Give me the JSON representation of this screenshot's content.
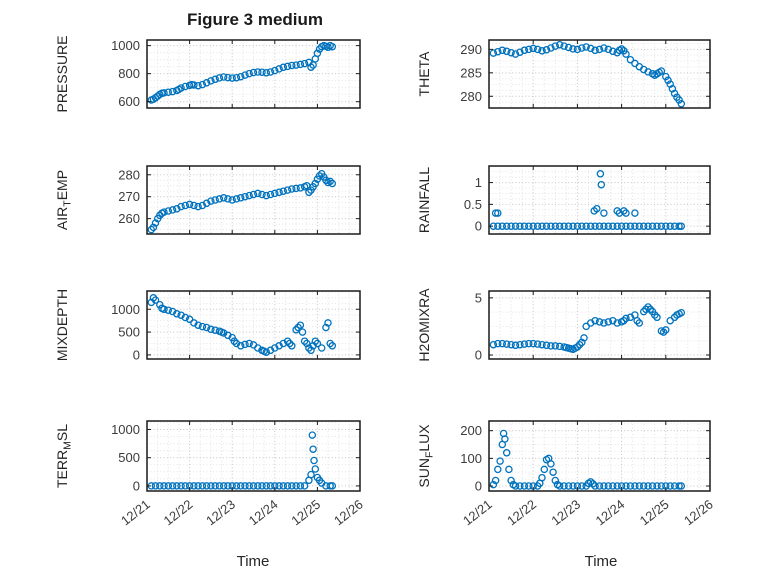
{
  "figure": {
    "title": "Figure 3 medium",
    "xlabel": "Time",
    "marker_color": "#0072BD",
    "xtick_labels": [
      "12/21",
      "12/22",
      "12/23",
      "12/24",
      "12/25",
      "12/26"
    ]
  },
  "chart_data": [
    {
      "type": "scatter",
      "name": "PRESSURE",
      "ylabel_parts": [
        {
          "t": "PRESSURE"
        }
      ],
      "yticks": [
        600,
        800,
        1000
      ],
      "ytick_labels": [
        "600",
        "800",
        "1000"
      ],
      "ylim": [
        555,
        1040
      ],
      "x": [
        0.1,
        0.15,
        0.2,
        0.25,
        0.3,
        0.35,
        0.4,
        0.5,
        0.6,
        0.7,
        0.75,
        0.8,
        0.9,
        1.0,
        1.05,
        1.1,
        1.2,
        1.3,
        1.4,
        1.5,
        1.6,
        1.7,
        1.8,
        1.9,
        2.0,
        2.1,
        2.2,
        2.3,
        2.4,
        2.5,
        2.6,
        2.7,
        2.8,
        2.9,
        3.0,
        3.1,
        3.2,
        3.3,
        3.4,
        3.5,
        3.6,
        3.7,
        3.8,
        3.85,
        3.9,
        3.95,
        4.0,
        4.05,
        4.1,
        4.15,
        4.2,
        4.25,
        4.3,
        4.35
      ],
      "y": [
        612,
        618,
        628,
        640,
        652,
        660,
        663,
        668,
        672,
        680,
        688,
        698,
        708,
        716,
        722,
        719,
        714,
        722,
        735,
        748,
        760,
        770,
        776,
        772,
        768,
        771,
        778,
        790,
        800,
        808,
        812,
        810,
        806,
        812,
        822,
        834,
        845,
        852,
        858,
        861,
        866,
        872,
        880,
        846,
        862,
        905,
        945,
        975,
        992,
        1000,
        996,
        988,
        1000,
        992
      ]
    },
    {
      "type": "scatter",
      "name": "THETA",
      "ylabel_parts": [
        {
          "t": "THETA"
        }
      ],
      "yticks": [
        280,
        285,
        290
      ],
      "ytick_labels": [
        "280",
        "285",
        "290"
      ],
      "ylim": [
        277.5,
        292
      ],
      "x": [
        0.1,
        0.2,
        0.3,
        0.4,
        0.5,
        0.6,
        0.7,
        0.8,
        0.9,
        1.0,
        1.1,
        1.2,
        1.3,
        1.4,
        1.5,
        1.6,
        1.7,
        1.8,
        1.9,
        2.0,
        2.1,
        2.2,
        2.3,
        2.4,
        2.5,
        2.6,
        2.7,
        2.8,
        2.9,
        2.95,
        3.0,
        3.05,
        3.1,
        3.2,
        3.3,
        3.4,
        3.5,
        3.6,
        3.7,
        3.75,
        3.8,
        3.85,
        3.9,
        4.0,
        4.05,
        4.1,
        4.15,
        4.2,
        4.25,
        4.3,
        4.35
      ],
      "y": [
        289.2,
        289.5,
        289.8,
        289.6,
        289.3,
        289.0,
        289.4,
        289.8,
        290.0,
        290.2,
        290.0,
        289.7,
        289.9,
        290.3,
        290.7,
        291.0,
        290.7,
        290.4,
        290.1,
        290.0,
        290.3,
        290.5,
        290.2,
        289.8,
        290.0,
        290.3,
        290.0,
        289.6,
        289.3,
        289.8,
        290.1,
        289.7,
        289.0,
        287.8,
        287.0,
        286.3,
        285.7,
        285.2,
        284.8,
        284.5,
        284.8,
        285.1,
        285.4,
        284.2,
        283.4,
        282.6,
        281.6,
        280.6,
        279.8,
        279.2,
        278.4
      ]
    },
    {
      "type": "scatter",
      "name": "AIR_TEMP",
      "ylabel_parts": [
        {
          "t": "AIR"
        },
        {
          "t": "T",
          "sub": true
        },
        {
          "t": "EMP"
        }
      ],
      "yticks": [
        260,
        270,
        280
      ],
      "ytick_labels": [
        "260",
        "270",
        "280"
      ],
      "ylim": [
        253,
        284
      ],
      "x": [
        0.1,
        0.15,
        0.2,
        0.25,
        0.3,
        0.35,
        0.4,
        0.5,
        0.6,
        0.7,
        0.8,
        0.9,
        1.0,
        1.1,
        1.2,
        1.3,
        1.4,
        1.5,
        1.6,
        1.7,
        1.8,
        1.9,
        2.0,
        2.1,
        2.2,
        2.3,
        2.4,
        2.5,
        2.6,
        2.7,
        2.8,
        2.9,
        3.0,
        3.1,
        3.2,
        3.3,
        3.4,
        3.5,
        3.6,
        3.7,
        3.75,
        3.8,
        3.85,
        3.9,
        3.95,
        4.0,
        4.05,
        4.1,
        4.15,
        4.2,
        4.25,
        4.3,
        4.35
      ],
      "y": [
        255.0,
        256.0,
        258.0,
        260.0,
        261.5,
        262.5,
        263.0,
        263.5,
        264.0,
        264.5,
        265.5,
        266.0,
        266.5,
        266.0,
        265.5,
        266.0,
        267.0,
        268.0,
        268.5,
        269.0,
        269.5,
        269.0,
        268.5,
        269.0,
        269.5,
        270.0,
        270.5,
        271.0,
        271.5,
        271.0,
        270.5,
        271.0,
        271.5,
        272.0,
        272.5,
        273.0,
        273.5,
        273.8,
        274.0,
        274.5,
        275.0,
        272.0,
        273.0,
        274.5,
        276.0,
        278.0,
        279.5,
        280.5,
        279.0,
        277.5,
        276.5,
        277.0,
        276.0
      ]
    },
    {
      "type": "scatter",
      "name": "RAINFALL",
      "ylabel_parts": [
        {
          "t": "RAINFALL"
        }
      ],
      "yticks": [
        0,
        0.5,
        1
      ],
      "ytick_labels": [
        "0",
        "0.5",
        "1"
      ],
      "ylim": [
        -0.18,
        1.38
      ],
      "x": [
        0.1,
        0.2,
        0.3,
        0.4,
        0.5,
        0.6,
        0.7,
        0.8,
        0.9,
        1.0,
        1.1,
        1.2,
        1.3,
        1.4,
        1.5,
        1.6,
        1.7,
        1.8,
        1.9,
        2.0,
        2.1,
        2.2,
        2.3,
        2.4,
        2.5,
        2.6,
        2.7,
        2.8,
        2.9,
        3.0,
        3.1,
        3.2,
        3.3,
        3.4,
        3.5,
        3.6,
        3.7,
        3.8,
        3.9,
        4.0,
        4.1,
        4.2,
        4.3,
        4.35,
        0.15,
        0.2,
        2.38,
        2.44,
        2.52,
        2.54,
        2.6,
        2.9,
        2.95,
        3.05,
        3.1,
        3.3
      ],
      "y": [
        0,
        0,
        0,
        0,
        0,
        0,
        0,
        0,
        0,
        0,
        0,
        0,
        0,
        0,
        0,
        0,
        0,
        0,
        0,
        0,
        0,
        0,
        0,
        0,
        0,
        0,
        0,
        0,
        0,
        0,
        0,
        0,
        0,
        0,
        0,
        0,
        0,
        0,
        0,
        0,
        0,
        0,
        0,
        0,
        0.3,
        0.3,
        0.35,
        0.4,
        1.2,
        0.95,
        0.3,
        0.35,
        0.3,
        0.35,
        0.3,
        0.3
      ]
    },
    {
      "type": "scatter",
      "name": "MIXDEPTH",
      "ylabel_parts": [
        {
          "t": "MIXDEPTH"
        }
      ],
      "yticks": [
        0,
        500,
        1000
      ],
      "ytick_labels": [
        "0",
        "500",
        "1000"
      ],
      "ylim": [
        -90,
        1400
      ],
      "x": [
        0.1,
        0.15,
        0.2,
        0.3,
        0.35,
        0.4,
        0.5,
        0.6,
        0.7,
        0.8,
        0.9,
        1.0,
        1.1,
        1.2,
        1.3,
        1.4,
        1.5,
        1.6,
        1.7,
        1.75,
        1.8,
        1.9,
        2.0,
        2.05,
        2.1,
        2.2,
        2.3,
        2.4,
        2.5,
        2.6,
        2.7,
        2.75,
        2.8,
        2.9,
        3.0,
        3.1,
        3.2,
        3.3,
        3.35,
        3.4,
        3.5,
        3.55,
        3.6,
        3.65,
        3.7,
        3.75,
        3.8,
        3.85,
        3.9,
        3.95,
        4.0,
        4.1,
        4.2,
        4.25,
        4.3,
        4.35
      ],
      "y": [
        1150,
        1250,
        1200,
        1100,
        1020,
        1000,
        980,
        950,
        900,
        870,
        820,
        780,
        700,
        650,
        620,
        600,
        560,
        540,
        520,
        500,
        480,
        430,
        380,
        300,
        250,
        200,
        230,
        250,
        220,
        150,
        100,
        80,
        60,
        100,
        150,
        200,
        250,
        300,
        250,
        200,
        550,
        600,
        650,
        500,
        300,
        250,
        150,
        100,
        200,
        300,
        250,
        150,
        600,
        700,
        250,
        200
      ]
    },
    {
      "type": "scatter",
      "name": "H2OMIXRA",
      "ylabel_parts": [
        {
          "t": "H2OMIXRA"
        }
      ],
      "yticks": [
        0,
        5
      ],
      "ytick_labels": [
        "0",
        "5"
      ],
      "ylim": [
        -0.35,
        5.6
      ],
      "x": [
        0.1,
        0.2,
        0.3,
        0.4,
        0.5,
        0.6,
        0.7,
        0.8,
        0.9,
        1.0,
        1.1,
        1.2,
        1.3,
        1.4,
        1.5,
        1.6,
        1.7,
        1.75,
        1.8,
        1.85,
        1.9,
        1.95,
        2.0,
        2.05,
        2.1,
        2.15,
        2.2,
        2.3,
        2.4,
        2.5,
        2.6,
        2.7,
        2.8,
        2.9,
        3.0,
        3.05,
        3.1,
        3.2,
        3.3,
        3.35,
        3.4,
        3.5,
        3.55,
        3.6,
        3.65,
        3.7,
        3.75,
        3.8,
        3.9,
        3.95,
        4.0,
        4.1,
        4.2,
        4.25,
        4.3,
        4.35
      ],
      "y": [
        0.9,
        1.0,
        1.0,
        0.95,
        0.9,
        0.85,
        0.9,
        0.95,
        1.0,
        1.0,
        0.95,
        0.9,
        0.85,
        0.8,
        0.8,
        0.75,
        0.7,
        0.65,
        0.6,
        0.55,
        0.5,
        0.6,
        0.7,
        0.9,
        1.1,
        1.5,
        2.5,
        2.8,
        3.0,
        2.9,
        2.8,
        2.9,
        3.0,
        2.8,
        2.9,
        3.0,
        3.2,
        3.3,
        3.5,
        3.0,
        2.8,
        3.8,
        4.0,
        4.2,
        4.0,
        3.8,
        3.5,
        3.3,
        2.1,
        2.0,
        2.2,
        3.0,
        3.3,
        3.5,
        3.6,
        3.7
      ]
    },
    {
      "type": "scatter",
      "name": "TERR_MSL",
      "ylabel_parts": [
        {
          "t": "TERR"
        },
        {
          "t": "M",
          "sub": true
        },
        {
          "t": "SL"
        }
      ],
      "yticks": [
        0,
        500,
        1000
      ],
      "ytick_labels": [
        "0",
        "500",
        "1000"
      ],
      "ylim": [
        -90,
        1150
      ],
      "x": [
        0.1,
        0.2,
        0.3,
        0.4,
        0.5,
        0.6,
        0.7,
        0.8,
        0.9,
        1.0,
        1.1,
        1.2,
        1.3,
        1.4,
        1.5,
        1.6,
        1.7,
        1.8,
        1.9,
        2.0,
        2.1,
        2.2,
        2.3,
        2.4,
        2.5,
        2.6,
        2.7,
        2.8,
        2.9,
        3.0,
        3.1,
        3.2,
        3.3,
        3.4,
        3.5,
        3.6,
        3.7,
        3.8,
        3.85,
        3.88,
        3.9,
        3.92,
        3.95,
        4.0,
        4.05,
        4.1,
        4.2,
        4.3,
        4.35
      ],
      "y": [
        0,
        0,
        0,
        0,
        0,
        0,
        0,
        0,
        0,
        0,
        0,
        0,
        0,
        0,
        0,
        0,
        0,
        0,
        0,
        0,
        0,
        0,
        0,
        0,
        0,
        0,
        0,
        0,
        0,
        0,
        0,
        0,
        0,
        0,
        0,
        0,
        0,
        100,
        200,
        900,
        650,
        450,
        300,
        150,
        100,
        50,
        0,
        0,
        0
      ]
    },
    {
      "type": "scatter",
      "name": "SUN_FLUX",
      "ylabel_parts": [
        {
          "t": "SUN"
        },
        {
          "t": "F",
          "sub": true
        },
        {
          "t": "LUX"
        }
      ],
      "yticks": [
        0,
        100,
        200
      ],
      "ytick_labels": [
        "0",
        "100",
        "200"
      ],
      "ylim": [
        -18,
        235
      ],
      "x": [
        0.1,
        0.15,
        0.2,
        0.25,
        0.3,
        0.33,
        0.36,
        0.4,
        0.45,
        0.5,
        0.55,
        0.6,
        0.7,
        0.8,
        0.9,
        1.0,
        1.1,
        1.15,
        1.2,
        1.25,
        1.3,
        1.35,
        1.4,
        1.45,
        1.5,
        1.55,
        1.6,
        1.7,
        1.8,
        1.9,
        2.0,
        2.1,
        2.2,
        2.25,
        2.3,
        2.35,
        2.4,
        2.5,
        2.6,
        2.7,
        2.8,
        2.9,
        3.0,
        3.1,
        3.2,
        3.3,
        3.4,
        3.5,
        3.6,
        3.7,
        3.8,
        3.9,
        4.0,
        4.1,
        4.2,
        4.3,
        4.35
      ],
      "y": [
        5,
        20,
        60,
        90,
        150,
        190,
        170,
        120,
        60,
        20,
        5,
        0,
        0,
        0,
        0,
        0,
        0,
        10,
        30,
        60,
        95,
        100,
        80,
        50,
        20,
        5,
        0,
        0,
        0,
        0,
        0,
        0,
        0,
        10,
        15,
        8,
        0,
        0,
        0,
        0,
        0,
        0,
        0,
        0,
        0,
        0,
        0,
        0,
        0,
        0,
        0,
        0,
        0,
        0,
        0,
        0,
        0
      ]
    }
  ]
}
